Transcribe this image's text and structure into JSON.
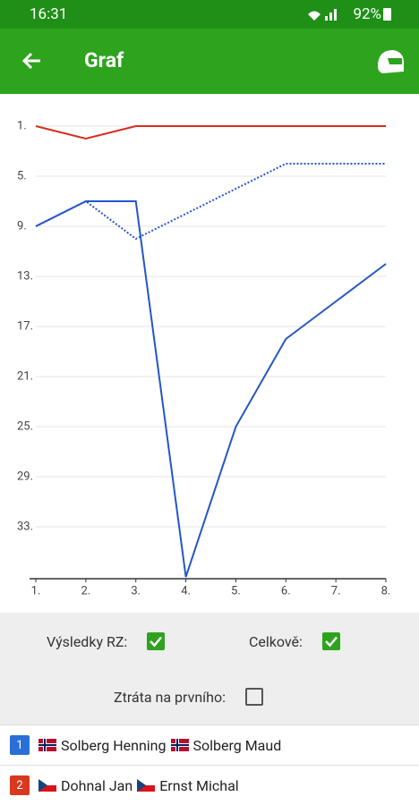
{
  "status_bar": {
    "time": "16:31",
    "battery": "92%"
  },
  "header": {
    "title": "Graf"
  },
  "chart_data": {
    "type": "line",
    "x": [
      1,
      2,
      3,
      4,
      5,
      6,
      7,
      8
    ],
    "xlim": [
      1,
      8
    ],
    "xticks": [
      {
        "value": 1,
        "label": "1."
      },
      {
        "value": 2,
        "label": "2."
      },
      {
        "value": 3,
        "label": "3."
      },
      {
        "value": 4,
        "label": "4."
      },
      {
        "value": 5,
        "label": "5."
      },
      {
        "value": 6,
        "label": "6."
      },
      {
        "value": 7,
        "label": "7."
      },
      {
        "value": 8,
        "label": "8."
      }
    ],
    "ylim": [
      37,
      1
    ],
    "yticks": [
      {
        "value": 1,
        "label": "1."
      },
      {
        "value": 5,
        "label": "5."
      },
      {
        "value": 9,
        "label": "9."
      },
      {
        "value": 13,
        "label": "13."
      },
      {
        "value": 17,
        "label": "17."
      },
      {
        "value": 21,
        "label": "21."
      },
      {
        "value": 25,
        "label": "25."
      },
      {
        "value": 29,
        "label": "29."
      },
      {
        "value": 33,
        "label": "33."
      }
    ],
    "grid": true,
    "series": [
      {
        "color": "#2456c8",
        "style": "solid",
        "values": [
          9,
          7,
          7,
          37,
          25,
          18,
          15,
          12
        ]
      },
      {
        "color": "#2456c8",
        "style": "dotted",
        "values": [
          9,
          7,
          10,
          8,
          6,
          4,
          4,
          4
        ]
      },
      {
        "color": "#d62d20",
        "style": "solid",
        "values": [
          1,
          2,
          1,
          1,
          1,
          1,
          1,
          1
        ]
      }
    ]
  },
  "controls": [
    {
      "label": "Výsledky RZ:",
      "checked": true
    },
    {
      "label": "Celkově:",
      "checked": true
    },
    {
      "label": "Ztráta na prvního:",
      "checked": false
    }
  ],
  "crews": [
    {
      "number": "1",
      "driver": "Solberg Henning",
      "codriver": "Solberg Maud",
      "color": "#2a6fd6"
    },
    {
      "number": "2",
      "driver": "Dohnal Jan",
      "codriver": "Ernst Michal",
      "color": "#d9381e"
    }
  ]
}
